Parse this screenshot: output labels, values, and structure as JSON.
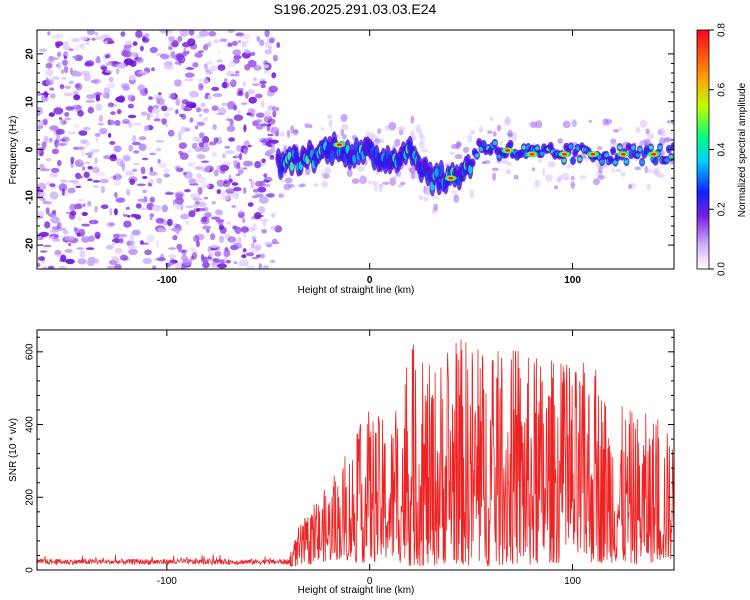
{
  "title": "S196.2025.291.03.03.E24",
  "colors": {
    "snr_line": "#ee2222",
    "axis": "#000000"
  },
  "chart_data": [
    {
      "type": "heatmap",
      "name": "spectrogram",
      "xlabel": "Height of straight line (km)",
      "ylabel": "Frequency (Hz)",
      "xlim": [
        -164,
        150
      ],
      "ylim": [
        -25,
        25
      ],
      "xticks": [
        -100,
        0,
        100
      ],
      "yticks": [
        -20,
        -10,
        0,
        10,
        20
      ],
      "colorbar": {
        "label": "Normalized spectral amplitude",
        "range": [
          0,
          0.8
        ],
        "ticks": [
          "0.0",
          "0.2",
          "0.4",
          "0.6",
          "0.8"
        ],
        "colormap": "rainbow_white_to_red"
      },
      "description_points": {
        "noise_region_x": [
          -164,
          -45
        ],
        "signal_start_x": -45,
        "signal_track": [
          {
            "x": -45,
            "f": -3
          },
          {
            "x": -35,
            "f": -2
          },
          {
            "x": -25,
            "f": -1
          },
          {
            "x": -15,
            "f": 1
          },
          {
            "x": -10,
            "f": -1
          },
          {
            "x": 0,
            "f": -1
          },
          {
            "x": 10,
            "f": -2
          },
          {
            "x": 20,
            "f": 0
          },
          {
            "x": 30,
            "f": -6
          },
          {
            "x": 40,
            "f": -6
          },
          {
            "x": 48,
            "f": -4
          },
          {
            "x": 55,
            "f": 1
          },
          {
            "x": 65,
            "f": 0
          },
          {
            "x": 80,
            "f": -1
          },
          {
            "x": 100,
            "f": -1
          },
          {
            "x": 120,
            "f": -1
          },
          {
            "x": 135,
            "f": -1
          },
          {
            "x": 150,
            "f": -1
          }
        ]
      }
    },
    {
      "type": "line",
      "name": "snr",
      "xlabel": "Height of straight line (km)",
      "ylabel": "SNR (10 * v/v)",
      "xlim": [
        -164,
        150
      ],
      "ylim": [
        0,
        660
      ],
      "xticks": [
        -100,
        0,
        100
      ],
      "yticks": [
        0,
        200,
        400,
        600
      ],
      "series": [
        {
          "name": "SNR",
          "envelope_x": [
            -164,
            -40,
            -35,
            -25,
            -15,
            -5,
            0,
            10,
            20,
            30,
            40,
            50,
            60,
            70,
            80,
            90,
            100,
            110,
            120,
            130,
            140,
            150
          ],
          "envelope_max": [
            40,
            40,
            120,
            200,
            280,
            400,
            450,
            400,
            640,
            560,
            640,
            650,
            600,
            620,
            590,
            590,
            560,
            580,
            460,
            440,
            430,
            370
          ],
          "envelope_min": [
            10,
            10,
            10,
            20,
            30,
            20,
            20,
            30,
            10,
            10,
            20,
            10,
            10,
            15,
            10,
            20,
            15,
            20,
            20,
            15,
            20,
            30
          ]
        }
      ]
    }
  ]
}
